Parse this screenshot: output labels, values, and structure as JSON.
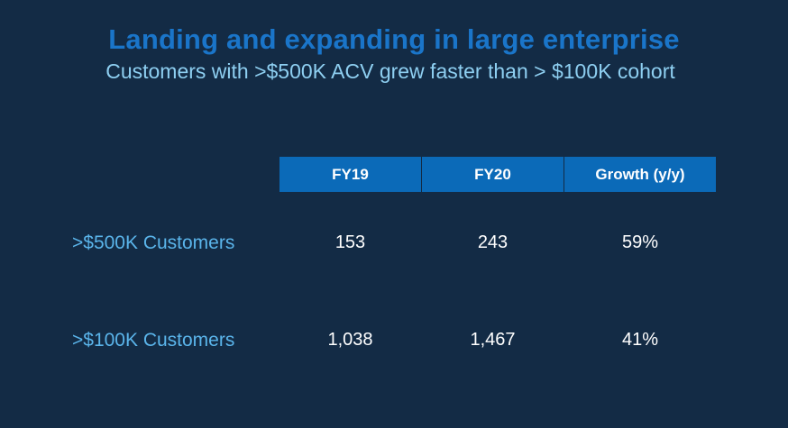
{
  "slide": {
    "title": "Landing and expanding in large enterprise",
    "subtitle": "Customers with >$500K ACV grew faster than > $100K cohort"
  },
  "table": {
    "headers": [
      "FY19",
      "FY20",
      "Growth (y/y)"
    ],
    "rows": [
      {
        "label": ">$500K Customers",
        "fy19": "153",
        "fy20": "243",
        "growth": "59%"
      },
      {
        "label": ">$100K Customers",
        "fy19": "1,038",
        "fy20": "1,467",
        "growth": "41%"
      }
    ]
  },
  "colors": {
    "background": "#132b45",
    "title": "#1a75c9",
    "subtitle": "#8ecff1",
    "header_fill": "#0b6ab8",
    "row_label": "#5ab4ea",
    "value_text": "#ffffff"
  }
}
